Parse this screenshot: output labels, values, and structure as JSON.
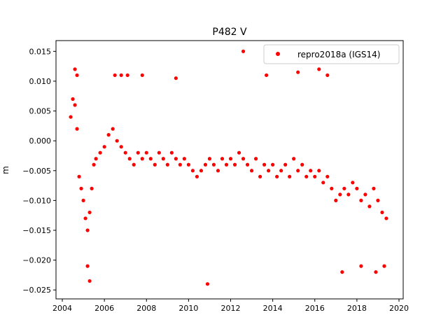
{
  "chart_data": {
    "type": "scatter",
    "title": "P482 V",
    "xlabel": "",
    "ylabel": "m",
    "xlim": [
      2003.7,
      2020.2
    ],
    "ylim": [
      -0.0265,
      0.0168
    ],
    "x_ticks": [
      2004,
      2006,
      2008,
      2010,
      2012,
      2014,
      2016,
      2018,
      2020
    ],
    "x_tick_labels": [
      "2004",
      "2006",
      "2008",
      "2010",
      "2012",
      "2014",
      "2016",
      "2018",
      "2020"
    ],
    "y_ticks": [
      0.015,
      0.01,
      0.005,
      0.0,
      -0.005,
      -0.01,
      -0.015,
      -0.02,
      -0.025
    ],
    "y_tick_labels": [
      "0.015",
      "0.010",
      "0.005",
      "0.000",
      "−0.005",
      "−0.010",
      "−0.015",
      "−0.020",
      "−0.025"
    ],
    "grid": false,
    "legend_position": "top-right",
    "series": [
      {
        "name": "repro2018a (IGS14)",
        "color": "#ff0000",
        "marker": "circle",
        "x": [
          2004.4,
          2004.5,
          2004.6,
          2004.7,
          2004.8,
          2004.9,
          2005.0,
          2005.1,
          2005.2,
          2005.3,
          2005.4,
          2005.5,
          2005.6,
          2005.8,
          2006.0,
          2006.2,
          2006.4,
          2006.6,
          2006.8,
          2007.0,
          2007.2,
          2007.4,
          2007.6,
          2007.8,
          2008.0,
          2008.2,
          2008.4,
          2008.6,
          2008.8,
          2009.0,
          2009.2,
          2009.4,
          2009.6,
          2009.8,
          2010.0,
          2010.2,
          2010.4,
          2010.6,
          2010.8,
          2011.0,
          2011.2,
          2011.4,
          2011.6,
          2011.8,
          2012.0,
          2012.2,
          2012.4,
          2012.6,
          2012.8,
          2013.0,
          2013.2,
          2013.4,
          2013.6,
          2013.8,
          2014.0,
          2014.2,
          2014.4,
          2014.6,
          2014.8,
          2015.0,
          2015.2,
          2015.4,
          2015.6,
          2015.8,
          2016.0,
          2016.2,
          2016.4,
          2016.6,
          2016.8,
          2017.0,
          2017.2,
          2017.4,
          2017.6,
          2017.8,
          2018.0,
          2018.2,
          2018.4,
          2018.6,
          2018.8,
          2019.0,
          2019.2,
          2019.4,
          2004.6,
          2004.7,
          2005.2,
          2005.3,
          2006.5,
          2006.8,
          2007.1,
          2007.8,
          2009.4,
          2010.9,
          2012.6,
          2013.7,
          2015.2,
          2016.2,
          2016.6,
          2017.3,
          2018.2,
          2018.9,
          2019.3
        ],
        "y": [
          0.004,
          0.007,
          0.006,
          0.002,
          -0.006,
          -0.008,
          -0.01,
          -0.013,
          -0.015,
          -0.012,
          -0.008,
          -0.004,
          -0.003,
          -0.002,
          -0.001,
          0.001,
          0.002,
          0.0,
          -0.001,
          -0.002,
          -0.003,
          -0.004,
          -0.002,
          -0.003,
          -0.002,
          -0.003,
          -0.004,
          -0.002,
          -0.003,
          -0.004,
          -0.002,
          -0.003,
          -0.004,
          -0.003,
          -0.004,
          -0.005,
          -0.006,
          -0.005,
          -0.004,
          -0.003,
          -0.004,
          -0.005,
          -0.003,
          -0.004,
          -0.003,
          -0.004,
          -0.002,
          -0.003,
          -0.004,
          -0.005,
          -0.003,
          -0.006,
          -0.004,
          -0.005,
          -0.004,
          -0.006,
          -0.005,
          -0.004,
          -0.006,
          -0.003,
          -0.005,
          -0.004,
          -0.006,
          -0.005,
          -0.006,
          -0.005,
          -0.007,
          -0.006,
          -0.008,
          -0.01,
          -0.009,
          -0.008,
          -0.009,
          -0.007,
          -0.008,
          -0.01,
          -0.009,
          -0.011,
          -0.008,
          -0.01,
          -0.012,
          -0.013,
          0.012,
          0.011,
          -0.021,
          -0.0235,
          0.011,
          0.011,
          0.011,
          0.011,
          0.0105,
          -0.024,
          0.015,
          0.011,
          0.0115,
          0.012,
          0.011,
          -0.022,
          -0.021,
          -0.022,
          -0.021
        ]
      }
    ]
  }
}
